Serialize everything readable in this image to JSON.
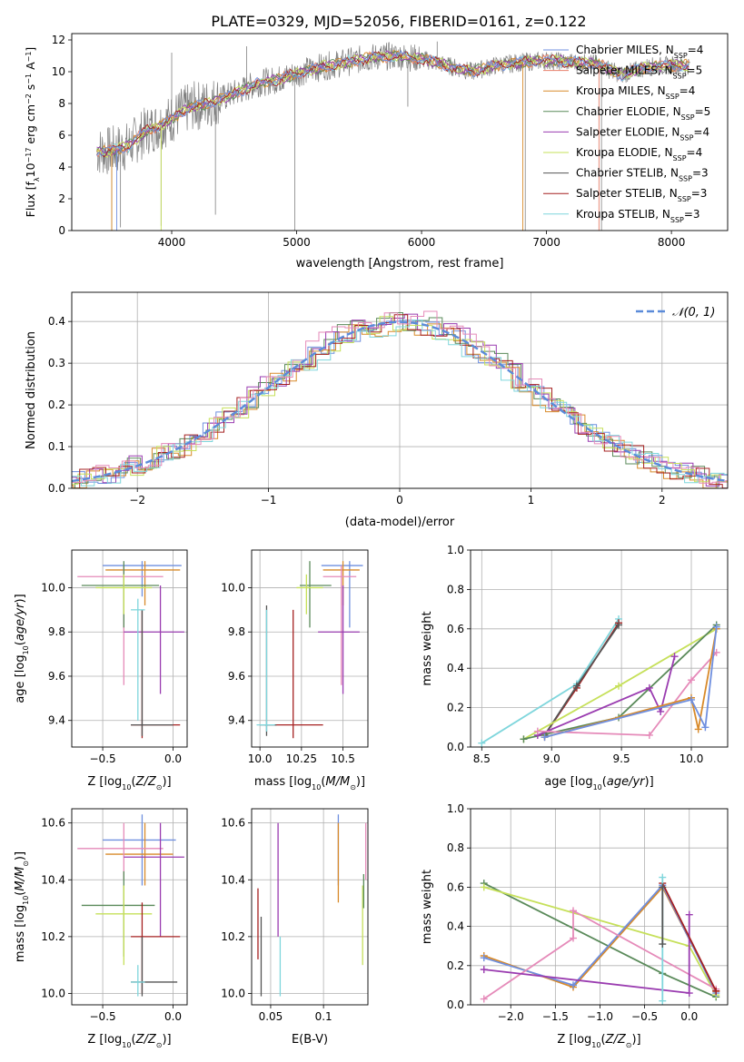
{
  "figure_title": "PLATE=0329, MJD=52056, FIBERID=0161, z=0.122",
  "colors": {
    "Chabrier MILES": "#6f8fdf",
    "Salpeter MILES": "#e77e6a",
    "Kroupa MILES": "#d88a2a",
    "Chabrier ELODIE": "#5a8a5a",
    "Salpeter ELODIE": "#9a3cb0",
    "Kroupa ELODIE": "#c6e05a",
    "Chabrier STELIB": "#555555",
    "Salpeter STELIB": "#a52020",
    "Kroupa STELIB": "#7fd6dc",
    "extra_pink": "#e58ab9",
    "data": "#808080",
    "normal": "#5b8bd9"
  },
  "chart_data": [
    {
      "id": "spectrum",
      "type": "line",
      "xlabel": "wavelength [Angstrom, rest frame]",
      "ylabel": "Flux [f_λ10^-17 erg cm^-2 s^-1 A^-1]",
      "xlim": [
        3200,
        8450
      ],
      "ylim": [
        0,
        12.4
      ],
      "xticks": [
        "4000",
        "5000",
        "6000",
        "7000",
        "8000"
      ],
      "yticks": [
        "0",
        "2",
        "4",
        "6",
        "8",
        "10",
        "12"
      ],
      "legend_position": "top-right",
      "legend": [
        {
          "label": "Chabrier MILES, N",
          "sub": "SSP",
          "suffix": "=4",
          "color_key": "Chabrier MILES"
        },
        {
          "label": "Salpeter MILES, N",
          "sub": "SSP",
          "suffix": "=5",
          "color_key": "Salpeter MILES"
        },
        {
          "label": "Kroupa MILES, N",
          "sub": "SSP",
          "suffix": "=4",
          "color_key": "Kroupa MILES"
        },
        {
          "label": "Chabrier ELODIE, N",
          "sub": "SSP",
          "suffix": "=5",
          "color_key": "Chabrier ELODIE"
        },
        {
          "label": "Salpeter ELODIE, N",
          "sub": "SSP",
          "suffix": "=4",
          "color_key": "Salpeter ELODIE"
        },
        {
          "label": "Kroupa ELODIE, N",
          "sub": "SSP",
          "suffix": "=4",
          "color_key": "Kroupa ELODIE"
        },
        {
          "label": "Chabrier STELIB, N",
          "sub": "SSP",
          "suffix": "=3",
          "color_key": "Chabrier STELIB"
        },
        {
          "label": "Salpeter STELIB, N",
          "sub": "SSP",
          "suffix": "=3",
          "color_key": "Salpeter STELIB"
        },
        {
          "label": "Kroupa STELIB, N",
          "sub": "SSP",
          "suffix": "=3",
          "color_key": "Kroupa STELIB"
        }
      ],
      "continuum": [
        [
          3400,
          5.0
        ],
        [
          3500,
          5.0
        ],
        [
          3650,
          5.3
        ],
        [
          3800,
          6.3
        ],
        [
          3950,
          6.8
        ],
        [
          4050,
          7.3
        ],
        [
          4150,
          7.8
        ],
        [
          4250,
          7.9
        ],
        [
          4400,
          8.3
        ],
        [
          4550,
          8.8
        ],
        [
          4700,
          9.3
        ],
        [
          4850,
          9.5
        ],
        [
          5000,
          9.9
        ],
        [
          5200,
          10.3
        ],
        [
          5400,
          10.6
        ],
        [
          5600,
          10.9
        ],
        [
          5800,
          11.0
        ],
        [
          6000,
          10.8
        ],
        [
          6200,
          10.4
        ],
        [
          6400,
          10.0
        ],
        [
          6600,
          10.4
        ],
        [
          6800,
          10.6
        ],
        [
          7000,
          10.7
        ],
        [
          7200,
          10.6
        ],
        [
          7400,
          10.5
        ],
        [
          7600,
          9.8
        ],
        [
          7800,
          10.3
        ],
        [
          8000,
          10.4
        ],
        [
          8150,
          10.4
        ]
      ],
      "spikes": [
        [
          3520,
          0.0
        ],
        [
          3590,
          0.2
        ],
        [
          3915,
          0.3
        ],
        [
          4000,
          11.2
        ],
        [
          4350,
          1.0
        ],
        [
          4985,
          0.0
        ],
        [
          5890,
          7.8
        ],
        [
          6830,
          0.0
        ],
        [
          7440,
          0.0
        ],
        [
          6125,
          11.9
        ],
        [
          4600,
          11.6
        ]
      ]
    },
    {
      "id": "residuals",
      "type": "line",
      "xlabel": "(data-model)/error",
      "ylabel": "Normed distribution",
      "xlim": [
        -2.5,
        2.5
      ],
      "ylim": [
        0,
        0.47
      ],
      "xticks": [
        -2,
        -1,
        0,
        1,
        2
      ],
      "yticks": [
        0.0,
        0.1,
        0.2,
        0.3,
        0.4
      ],
      "grid": true,
      "legend": "𝒩(0, 1)",
      "legend_position": "top-right",
      "bin_width": 0.1,
      "series": [
        {
          "color_key": "Chabrier MILES",
          "amp": 1.0
        },
        {
          "color_key": "Kroupa MILES",
          "amp": 0.98
        },
        {
          "color_key": "Chabrier ELODIE",
          "amp": 1.01
        },
        {
          "color_key": "Salpeter ELODIE",
          "amp": 1.02
        },
        {
          "color_key": "Kroupa ELODIE",
          "amp": 0.99
        },
        {
          "color_key": "Salpeter STELIB",
          "amp": 1.0
        },
        {
          "color_key": "Kroupa STELIB",
          "amp": 0.97
        },
        {
          "color_key": "extra_pink",
          "amp": 1.03
        }
      ]
    },
    {
      "id": "age_vs_Z",
      "type": "scatter",
      "xlabel": "Z [log10(Z/Z⊙)]",
      "ylabel": "age [log10(age/yr)]",
      "xlim": [
        -0.72,
        0.1
      ],
      "ylim": [
        9.28,
        10.17
      ],
      "xticks": [
        -0.5,
        0.0
      ],
      "yticks": [
        9.4,
        9.6,
        9.8,
        10.0
      ],
      "grid": true,
      "points": [
        {
          "c": "Chabrier MILES",
          "x": -0.22,
          "y": 10.1,
          "xe": [
            -0.5,
            0.06
          ],
          "ye": [
            9.96,
            10.12
          ]
        },
        {
          "c": "Kroupa MILES",
          "x": -0.2,
          "y": 10.08,
          "xe": [
            -0.48,
            0.05
          ],
          "ye": [
            9.92,
            10.12
          ]
        },
        {
          "c": "extra_pink",
          "x": -0.35,
          "y": 10.05,
          "xe": [
            -0.68,
            -0.07
          ],
          "ye": [
            9.56,
            10.1
          ]
        },
        {
          "c": "Chabrier ELODIE",
          "x": -0.35,
          "y": 10.01,
          "xe": [
            -0.65,
            -0.1
          ],
          "ye": [
            9.82,
            10.12
          ]
        },
        {
          "c": "Kroupa ELODIE",
          "x": -0.35,
          "y": 10.0,
          "xe": [
            -0.55,
            -0.15
          ],
          "ye": [
            9.88,
            10.06
          ]
        },
        {
          "c": "Salpeter ELODIE",
          "x": -0.09,
          "y": 9.8,
          "xe": [
            -0.35,
            0.08
          ],
          "ye": [
            9.52,
            10.01
          ]
        },
        {
          "c": "Salpeter STELIB",
          "x": -0.22,
          "y": 9.38,
          "xe": [
            -0.3,
            0.05
          ],
          "ye": [
            9.32,
            9.9
          ]
        },
        {
          "c": "Chabrier STELIB",
          "x": -0.22,
          "y": 9.38,
          "xe": [
            -0.3,
            0.0
          ],
          "ye": [
            9.33,
            9.9
          ]
        },
        {
          "c": "Kroupa STELIB",
          "x": -0.25,
          "y": 9.9,
          "xe": [
            -0.3,
            -0.2
          ],
          "ye": [
            9.4,
            9.95
          ]
        }
      ]
    },
    {
      "id": "age_vs_mass",
      "type": "scatter",
      "xlabel": "mass [log10(M/M⊙)]",
      "ylabel": "",
      "xlim": [
        9.95,
        10.65
      ],
      "ylim": [
        9.28,
        10.17
      ],
      "xticks": [
        10.0,
        10.25,
        10.5
      ],
      "yticks": [
        9.4,
        9.6,
        9.8,
        10.0
      ],
      "grid": true,
      "points": [
        {
          "c": "Chabrier MILES",
          "x": 10.54,
          "y": 10.1,
          "xe": [
            10.37,
            10.62
          ],
          "ye": [
            9.82,
            10.12
          ]
        },
        {
          "c": "Kroupa MILES",
          "x": 10.5,
          "y": 10.08,
          "xe": [
            10.38,
            10.6
          ],
          "ye": [
            9.92,
            10.12
          ]
        },
        {
          "c": "extra_pink",
          "x": 10.49,
          "y": 10.05,
          "xe": [
            10.38,
            10.58
          ],
          "ye": [
            9.56,
            10.1
          ]
        },
        {
          "c": "Chabrier ELODIE",
          "x": 10.3,
          "y": 10.01,
          "xe": [
            10.24,
            10.43
          ],
          "ye": [
            9.82,
            10.12
          ]
        },
        {
          "c": "Kroupa ELODIE",
          "x": 10.28,
          "y": 10.0,
          "xe": [
            10.22,
            10.38
          ],
          "ye": [
            9.88,
            10.06
          ]
        },
        {
          "c": "Salpeter ELODIE",
          "x": 10.5,
          "y": 9.8,
          "xe": [
            10.35,
            10.6
          ],
          "ye": [
            9.52,
            10.01
          ]
        },
        {
          "c": "Salpeter STELIB",
          "x": 10.2,
          "y": 9.38,
          "xe": [
            10.03,
            10.38
          ],
          "ye": [
            9.32,
            9.9
          ]
        },
        {
          "c": "Chabrier STELIB",
          "x": 10.04,
          "y": 9.38,
          "xe": [
            10.0,
            10.1
          ],
          "ye": [
            9.33,
            9.92
          ]
        },
        {
          "c": "Kroupa STELIB",
          "x": 10.04,
          "y": 9.38,
          "xe": [
            9.98,
            10.09
          ],
          "ye": [
            9.35,
            9.9
          ]
        }
      ]
    },
    {
      "id": "mass_vs_Z",
      "type": "scatter",
      "xlabel": "Z [log10(Z/Z⊙)]",
      "ylabel": "mass [log10(M/M⊙)]",
      "xlim": [
        -0.72,
        0.1
      ],
      "ylim": [
        9.96,
        10.65
      ],
      "xticks": [
        -0.5,
        0.0
      ],
      "yticks": [
        10.0,
        10.2,
        10.4,
        10.6
      ],
      "grid": true,
      "points": [
        {
          "c": "Chabrier MILES",
          "x": -0.22,
          "y": 10.54,
          "xe": [
            -0.5,
            0.02
          ],
          "ye": [
            10.38,
            10.63
          ]
        },
        {
          "c": "Kroupa MILES",
          "x": -0.2,
          "y": 10.49,
          "xe": [
            -0.48,
            0.0
          ],
          "ye": [
            10.38,
            10.6
          ]
        },
        {
          "c": "extra_pink",
          "x": -0.35,
          "y": 10.51,
          "xe": [
            -0.68,
            -0.07
          ],
          "ye": [
            10.4,
            10.6
          ]
        },
        {
          "c": "Salpeter ELODIE",
          "x": -0.09,
          "y": 10.48,
          "xe": [
            -0.35,
            0.08
          ],
          "ye": [
            10.2,
            10.6
          ]
        },
        {
          "c": "Chabrier ELODIE",
          "x": -0.35,
          "y": 10.31,
          "xe": [
            -0.65,
            -0.13
          ],
          "ye": [
            10.13,
            10.43
          ]
        },
        {
          "c": "Kroupa ELODIE",
          "x": -0.35,
          "y": 10.28,
          "xe": [
            -0.55,
            -0.15
          ],
          "ye": [
            10.1,
            10.38
          ]
        },
        {
          "c": "Salpeter STELIB",
          "x": -0.22,
          "y": 10.2,
          "xe": [
            -0.3,
            0.05
          ],
          "ye": [
            10.0,
            10.32
          ]
        },
        {
          "c": "Chabrier STELIB",
          "x": -0.22,
          "y": 10.04,
          "xe": [
            -0.3,
            0.03
          ],
          "ye": [
            9.99,
            10.2
          ]
        },
        {
          "c": "Kroupa STELIB",
          "x": -0.25,
          "y": 10.04,
          "xe": [
            -0.3,
            -0.2
          ],
          "ye": [
            9.99,
            10.1
          ]
        }
      ]
    },
    {
      "id": "mass_vs_EBV",
      "type": "scatter",
      "xlabel": "E(B-V)",
      "ylabel": "",
      "xlim": [
        0.032,
        0.142
      ],
      "ylim": [
        9.96,
        10.65
      ],
      "xticks": [
        0.05,
        0.1
      ],
      "yticks": [
        10.0,
        10.2,
        10.4,
        10.6
      ],
      "grid": true,
      "points": [
        {
          "c": "Salpeter STELIB",
          "x": 0.038,
          "ye": [
            10.12,
            10.37
          ]
        },
        {
          "c": "Chabrier STELIB",
          "x": 0.041,
          "ye": [
            9.99,
            10.27
          ]
        },
        {
          "c": "Kroupa STELIB",
          "x": 0.059,
          "ye": [
            9.99,
            10.2
          ]
        },
        {
          "c": "Salpeter ELODIE",
          "x": 0.057,
          "ye": [
            10.2,
            10.6
          ]
        },
        {
          "c": "Chabrier MILES",
          "x": 0.114,
          "ye": [
            10.38,
            10.63
          ]
        },
        {
          "c": "Kroupa MILES",
          "x": 0.114,
          "ye": [
            10.32,
            10.6
          ]
        },
        {
          "c": "Kroupa ELODIE",
          "x": 0.137,
          "ye": [
            10.1,
            10.38
          ]
        },
        {
          "c": "extra_pink",
          "x": 0.14,
          "ye": [
            10.4,
            10.6
          ]
        },
        {
          "c": "Chabrier ELODIE",
          "x": 0.138,
          "ye": [
            10.3,
            10.42
          ]
        }
      ]
    },
    {
      "id": "weight_vs_age",
      "type": "line",
      "xlabel": "age [log10(age/yr)]",
      "ylabel": "mass weight",
      "xlim": [
        8.42,
        10.26
      ],
      "ylim": [
        0,
        1.0
      ],
      "xticks": [
        8.5,
        9.0,
        9.5,
        10.0
      ],
      "yticks": [
        0.0,
        0.2,
        0.4,
        0.6,
        0.8,
        1.0
      ],
      "grid": true,
      "series": [
        {
          "c": "Kroupa STELIB",
          "x": [
            8.5,
            9.18,
            9.48
          ],
          "y": [
            0.02,
            0.32,
            0.65
          ]
        },
        {
          "c": "Salpeter STELIB",
          "x": [
            8.95,
            9.18,
            9.48
          ],
          "y": [
            0.06,
            0.3,
            0.63
          ]
        },
        {
          "c": "Chabrier STELIB",
          "x": [
            8.95,
            9.18,
            9.48
          ],
          "y": [
            0.06,
            0.31,
            0.62
          ]
        },
        {
          "c": "Kroupa ELODIE",
          "x": [
            8.8,
            9.48,
            10.18
          ],
          "y": [
            0.04,
            0.31,
            0.6
          ]
        },
        {
          "c": "Chabrier ELODIE",
          "x": [
            8.8,
            9.48,
            10.18
          ],
          "y": [
            0.04,
            0.15,
            0.62
          ]
        },
        {
          "c": "Salpeter ELODIE",
          "x": [
            8.9,
            9.7,
            9.78,
            9.88
          ],
          "y": [
            0.06,
            0.3,
            0.18,
            0.46
          ]
        },
        {
          "c": "extra_pink",
          "x": [
            8.9,
            9.7,
            10.0,
            10.18
          ],
          "y": [
            0.08,
            0.06,
            0.34,
            0.48
          ]
        },
        {
          "c": "Kroupa MILES",
          "x": [
            8.95,
            10.0,
            10.05,
            10.18
          ],
          "y": [
            0.05,
            0.25,
            0.09,
            0.6
          ]
        },
        {
          "c": "Chabrier MILES",
          "x": [
            8.95,
            10.0,
            10.1,
            10.18
          ],
          "y": [
            0.05,
            0.24,
            0.1,
            0.61
          ]
        }
      ]
    },
    {
      "id": "weight_vs_Z",
      "type": "line",
      "xlabel": "Z [log10(Z/Z⊙)]",
      "ylabel": "mass weight",
      "xlim": [
        -2.45,
        0.43
      ],
      "ylim": [
        0,
        1.0
      ],
      "xticks": [
        -2.0,
        -1.5,
        -1.0,
        -0.5,
        0.0
      ],
      "yticks": [
        0.0,
        0.2,
        0.4,
        0.6,
        0.8,
        1.0
      ],
      "grid": true,
      "series": [
        {
          "c": "Chabrier ELODIE",
          "x": [
            -2.3,
            -0.3,
            0.3
          ],
          "y": [
            0.62,
            0.16,
            0.04
          ]
        },
        {
          "c": "Kroupa ELODIE",
          "x": [
            -2.3,
            0.0,
            0.3
          ],
          "y": [
            0.6,
            0.3,
            0.05
          ]
        },
        {
          "c": "Kroupa MILES",
          "x": [
            -2.3,
            -1.3,
            -0.3,
            0.3
          ],
          "y": [
            0.25,
            0.09,
            0.6,
            0.07
          ]
        },
        {
          "c": "Chabrier MILES",
          "x": [
            -2.3,
            -1.3,
            -0.3,
            0.3
          ],
          "y": [
            0.24,
            0.1,
            0.61,
            0.06
          ]
        },
        {
          "c": "extra_pink",
          "x": [
            -2.3,
            -1.3,
            -1.3,
            0.3
          ],
          "y": [
            0.03,
            0.34,
            0.48,
            0.08
          ]
        },
        {
          "c": "Salpeter ELODIE",
          "x": [
            -2.3,
            0.0,
            0.0
          ],
          "y": [
            0.18,
            0.06,
            0.46
          ]
        },
        {
          "c": "Salpeter STELIB",
          "x": [
            -0.3,
            0.3
          ],
          "y": [
            0.62,
            0.07
          ]
        },
        {
          "c": "Kroupa STELIB",
          "x": [
            -0.3,
            -0.3
          ],
          "y": [
            0.02,
            0.65
          ]
        },
        {
          "c": "Chabrier STELIB",
          "x": [
            -0.3,
            -0.3
          ],
          "y": [
            0.31,
            0.6
          ]
        }
      ]
    }
  ]
}
